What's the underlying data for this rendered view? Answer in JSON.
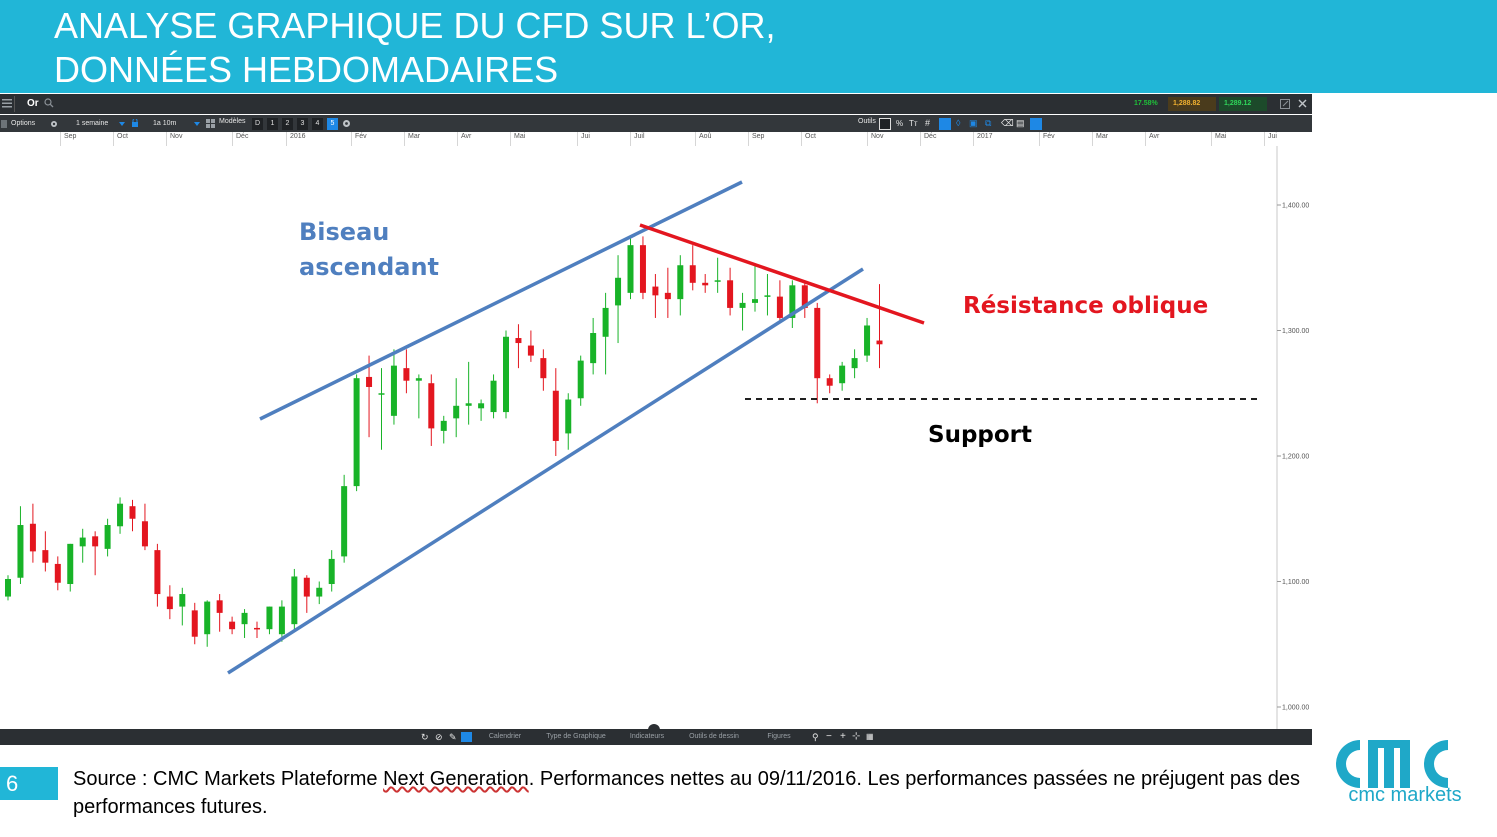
{
  "slide": {
    "title_line1": "ANALYSE GRAPHIQUE DU CFD SUR L’OR,",
    "title_line2": "DONNÉES HEBDOMADAIRES",
    "page_number": "6",
    "source_part1": "Source : CMC Markets Plateforme ",
    "source_link": "Next Generation",
    "source_part2": ". Performances nettes au 09/11/2016. Les performances passées ne préjugent pas des performances futures.",
    "logo_sub": "cmc markets"
  },
  "platform": {
    "instrument": "Or",
    "change": "17.58%",
    "sell_price": "1,288.82",
    "buy_price": "1,289.12",
    "options_label": "Options",
    "interval": "1 semaine",
    "range": "1a 10m",
    "models_label": "Modèles",
    "presets": [
      "D",
      "1",
      "2",
      "3",
      "4",
      "5"
    ],
    "tools_label": "Outils",
    "bottom_tabs": [
      "Calendrier",
      "Type de Graphique",
      "Indicateurs",
      "Outils de dessin",
      "Figures"
    ],
    "accent": "#1e88e5"
  },
  "months": [
    "Sep",
    "Oct",
    "Nov",
    "Déc",
    "2016",
    "Fév",
    "Mar",
    "Avr",
    "Mai",
    "Jui",
    "Juil",
    "Aoû",
    "Sep",
    "Oct",
    "Nov",
    "Déc",
    "2017",
    "Fév",
    "Mar",
    "Avr",
    "Mai",
    "Jui"
  ],
  "chart_data": {
    "type": "candlestick",
    "y_ticks": [
      "1,400.00",
      "1,300.00",
      "1,200.00",
      "1,100.00",
      "1,000.00"
    ],
    "ylim": [
      977,
      1442
    ],
    "candles": [
      {
        "o": 1088,
        "h": 1105,
        "l": 1085,
        "c": 1102
      },
      {
        "o": 1103,
        "h": 1160,
        "l": 1098,
        "c": 1145
      },
      {
        "o": 1146,
        "h": 1162,
        "l": 1115,
        "c": 1124
      },
      {
        "o": 1125,
        "h": 1140,
        "l": 1108,
        "c": 1115
      },
      {
        "o": 1114,
        "h": 1120,
        "l": 1093,
        "c": 1099
      },
      {
        "o": 1098,
        "h": 1130,
        "l": 1092,
        "c": 1130
      },
      {
        "o": 1128,
        "h": 1142,
        "l": 1115,
        "c": 1135
      },
      {
        "o": 1136,
        "h": 1140,
        "l": 1105,
        "c": 1128
      },
      {
        "o": 1126,
        "h": 1150,
        "l": 1120,
        "c": 1145
      },
      {
        "o": 1144,
        "h": 1167,
        "l": 1138,
        "c": 1162
      },
      {
        "o": 1160,
        "h": 1165,
        "l": 1140,
        "c": 1150
      },
      {
        "o": 1148,
        "h": 1162,
        "l": 1125,
        "c": 1128
      },
      {
        "o": 1125,
        "h": 1130,
        "l": 1080,
        "c": 1090
      },
      {
        "o": 1088,
        "h": 1097,
        "l": 1070,
        "c": 1078
      },
      {
        "o": 1080,
        "h": 1095,
        "l": 1065,
        "c": 1090
      },
      {
        "o": 1077,
        "h": 1083,
        "l": 1050,
        "c": 1056
      },
      {
        "o": 1058,
        "h": 1085,
        "l": 1048,
        "c": 1084
      },
      {
        "o": 1085,
        "h": 1090,
        "l": 1060,
        "c": 1075
      },
      {
        "o": 1068,
        "h": 1072,
        "l": 1058,
        "c": 1062
      },
      {
        "o": 1066,
        "h": 1078,
        "l": 1055,
        "c": 1075
      },
      {
        "o": 1063,
        "h": 1068,
        "l": 1055,
        "c": 1062
      },
      {
        "o": 1062,
        "h": 1080,
        "l": 1058,
        "c": 1080
      },
      {
        "o": 1058,
        "h": 1085,
        "l": 1052,
        "c": 1080
      },
      {
        "o": 1066,
        "h": 1110,
        "l": 1062,
        "c": 1104
      },
      {
        "o": 1103,
        "h": 1105,
        "l": 1075,
        "c": 1088
      },
      {
        "o": 1088,
        "h": 1100,
        "l": 1082,
        "c": 1095
      },
      {
        "o": 1098,
        "h": 1125,
        "l": 1092,
        "c": 1118
      },
      {
        "o": 1120,
        "h": 1185,
        "l": 1115,
        "c": 1176
      },
      {
        "o": 1176,
        "h": 1265,
        "l": 1172,
        "c": 1262
      },
      {
        "o": 1263,
        "h": 1280,
        "l": 1215,
        "c": 1255
      },
      {
        "o": 1250,
        "h": 1270,
        "l": 1205,
        "c": 1250
      },
      {
        "o": 1232,
        "h": 1285,
        "l": 1225,
        "c": 1272
      },
      {
        "o": 1270,
        "h": 1285,
        "l": 1250,
        "c": 1260
      },
      {
        "o": 1260,
        "h": 1265,
        "l": 1230,
        "c": 1262
      },
      {
        "o": 1258,
        "h": 1265,
        "l": 1208,
        "c": 1222
      },
      {
        "o": 1220,
        "h": 1232,
        "l": 1210,
        "c": 1228
      },
      {
        "o": 1230,
        "h": 1262,
        "l": 1215,
        "c": 1240
      },
      {
        "o": 1240,
        "h": 1275,
        "l": 1225,
        "c": 1242
      },
      {
        "o": 1238,
        "h": 1245,
        "l": 1228,
        "c": 1242
      },
      {
        "o": 1235,
        "h": 1265,
        "l": 1230,
        "c": 1260
      },
      {
        "o": 1235,
        "h": 1300,
        "l": 1230,
        "c": 1295
      },
      {
        "o": 1294,
        "h": 1305,
        "l": 1270,
        "c": 1290
      },
      {
        "o": 1288,
        "h": 1300,
        "l": 1275,
        "c": 1280
      },
      {
        "o": 1278,
        "h": 1285,
        "l": 1252,
        "c": 1262
      },
      {
        "o": 1252,
        "h": 1270,
        "l": 1200,
        "c": 1212
      },
      {
        "o": 1218,
        "h": 1250,
        "l": 1205,
        "c": 1245
      },
      {
        "o": 1246,
        "h": 1280,
        "l": 1240,
        "c": 1276
      },
      {
        "o": 1274,
        "h": 1310,
        "l": 1265,
        "c": 1298
      },
      {
        "o": 1295,
        "h": 1330,
        "l": 1265,
        "c": 1318
      },
      {
        "o": 1320,
        "h": 1360,
        "l": 1290,
        "c": 1342
      },
      {
        "o": 1330,
        "h": 1375,
        "l": 1325,
        "c": 1368
      },
      {
        "o": 1368,
        "h": 1375,
        "l": 1325,
        "c": 1330
      },
      {
        "o": 1335,
        "h": 1345,
        "l": 1310,
        "c": 1328
      },
      {
        "o": 1330,
        "h": 1350,
        "l": 1310,
        "c": 1325
      },
      {
        "o": 1325,
        "h": 1360,
        "l": 1312,
        "c": 1352
      },
      {
        "o": 1352,
        "h": 1368,
        "l": 1332,
        "c": 1338
      },
      {
        "o": 1338,
        "h": 1345,
        "l": 1330,
        "c": 1336
      },
      {
        "o": 1340,
        "h": 1358,
        "l": 1330,
        "c": 1340
      },
      {
        "o": 1340,
        "h": 1350,
        "l": 1312,
        "c": 1318
      },
      {
        "o": 1318,
        "h": 1330,
        "l": 1300,
        "c": 1322
      },
      {
        "o": 1322,
        "h": 1352,
        "l": 1315,
        "c": 1325
      },
      {
        "o": 1328,
        "h": 1345,
        "l": 1312,
        "c": 1328
      },
      {
        "o": 1327,
        "h": 1340,
        "l": 1308,
        "c": 1310
      },
      {
        "o": 1310,
        "h": 1340,
        "l": 1302,
        "c": 1336
      },
      {
        "o": 1336,
        "h": 1340,
        "l": 1310,
        "c": 1318
      },
      {
        "o": 1318,
        "h": 1322,
        "l": 1242,
        "c": 1262
      },
      {
        "o": 1262,
        "h": 1265,
        "l": 1250,
        "c": 1256
      },
      {
        "o": 1258,
        "h": 1275,
        "l": 1252,
        "c": 1272
      },
      {
        "o": 1270,
        "h": 1285,
        "l": 1262,
        "c": 1278
      },
      {
        "o": 1280,
        "h": 1310,
        "l": 1275,
        "c": 1304
      },
      {
        "o": 1292,
        "h": 1337,
        "l": 1270,
        "c": 1289
      }
    ],
    "annotations": {
      "wedge_label_line1": "Biseau",
      "wedge_label_line2": "ascendant",
      "resistance_label": "Résistance oblique",
      "support_label": "Support"
    },
    "colors": {
      "up": "#18b328",
      "down": "#e3161f",
      "wedge": "#4f7fbf",
      "resistance": "#e3161f",
      "support": "#000000"
    }
  }
}
